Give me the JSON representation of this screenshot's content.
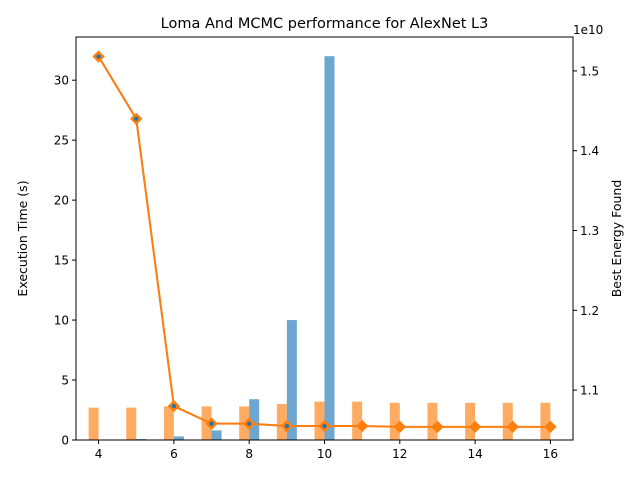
{
  "chart_data": {
    "type": "bar",
    "title": "Loma And MCMC performance for AlexNet L3",
    "xlabel": "",
    "ylabel": "Execution Time (s)",
    "y2label": "Best Energy Found",
    "y2_offset_text": "1e10",
    "xlim": [
      3.4,
      16.6
    ],
    "ylim": [
      0,
      33.6
    ],
    "y2lim": [
      1.0375,
      1.5425
    ],
    "x_ticks": [
      "4",
      "6",
      "8",
      "10",
      "12",
      "14",
      "16"
    ],
    "y_ticks": [
      "0",
      "5",
      "10",
      "15",
      "20",
      "25",
      "30"
    ],
    "y2_ticks": [
      "1.1",
      "1.2",
      "1.3",
      "1.4",
      "1.5"
    ],
    "legend": null,
    "grid": false,
    "colors": {
      "orange_bars": "#ff7f0e",
      "blue_bars": "#1f77b4",
      "blue_line": "#3274a1",
      "orange_line": "#ff7f0e",
      "diamond_fill": "#ff7f0e",
      "diamond_edge": "#ff7f0e",
      "diamond_center": "#1f77b4"
    },
    "series": [
      {
        "kind": "bar",
        "color": "orange",
        "axis": "left",
        "x": [
          4,
          5,
          6,
          7,
          8,
          9,
          10,
          11,
          12,
          13,
          14,
          15,
          16
        ],
        "values": [
          2.7,
          2.7,
          2.8,
          2.8,
          2.8,
          3.0,
          3.2,
          3.2,
          3.1,
          3.1,
          3.1,
          3.1,
          3.1
        ]
      },
      {
        "kind": "bar",
        "color": "blue",
        "axis": "left",
        "x": [
          4,
          5,
          6,
          7,
          8,
          9,
          10
        ],
        "values": [
          0.02,
          0.08,
          0.3,
          0.8,
          3.4,
          10.0,
          32.0
        ]
      },
      {
        "kind": "line",
        "color": "blue",
        "axis": "right",
        "x": [
          4,
          5,
          6,
          7,
          8,
          9,
          10
        ],
        "values": [
          1.518,
          1.44,
          1.08,
          1.058,
          1.058,
          1.055,
          1.055
        ]
      },
      {
        "kind": "line",
        "color": "orange",
        "axis": "right",
        "marker": "diamond",
        "x": [
          4,
          5,
          6,
          7,
          8,
          9,
          10,
          11,
          12,
          13,
          14,
          15,
          16
        ],
        "values": [
          1.518,
          1.44,
          1.08,
          1.058,
          1.058,
          1.055,
          1.055,
          1.055,
          1.054,
          1.054,
          1.054,
          1.054,
          1.054
        ]
      }
    ]
  }
}
